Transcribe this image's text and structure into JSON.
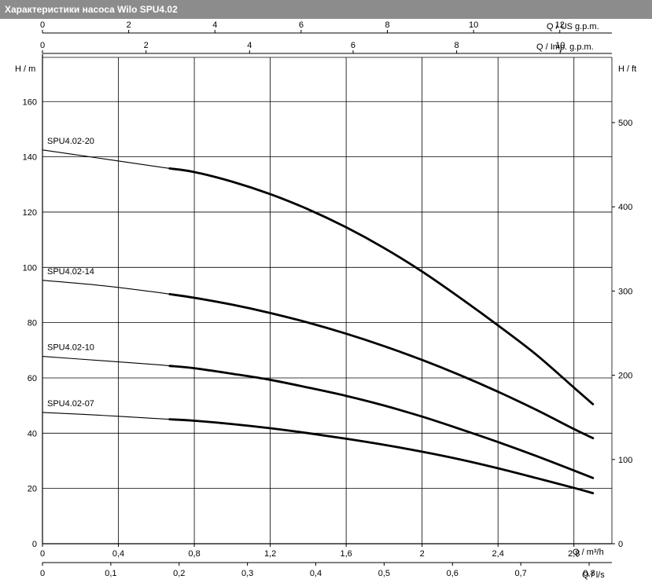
{
  "title": "Характеристики насоса Wilo SPU4.02",
  "chart_data": {
    "type": "line",
    "x_axis_primary": {
      "label_symbol": "Q",
      "unit": "m³/h",
      "range": [
        0,
        3.0
      ],
      "ticks": [
        0,
        0.4,
        0.8,
        1.2,
        1.6,
        2,
        2.4,
        2.8
      ],
      "tick_labels": [
        "0",
        "0,4",
        "0,8",
        "1,2",
        "1,6",
        "2",
        "2,4",
        "2,8"
      ]
    },
    "x_axis_ls": {
      "label_symbol": "Q",
      "unit": "l/s",
      "ticks": [
        0,
        0.1,
        0.2,
        0.3,
        0.4,
        0.5,
        0.6,
        0.7,
        0.8
      ],
      "tick_labels": [
        "0",
        "0,1",
        "0,2",
        "0,3",
        "0,4",
        "0,5",
        "0,6",
        "0,7",
        "0,8"
      ]
    },
    "x_axis_us_gpm": {
      "label_symbol": "Q",
      "unit": "US g.p.m.",
      "ticks": [
        0,
        2,
        4,
        6,
        8,
        10,
        12
      ],
      "tick_labels": [
        "0",
        "2",
        "4",
        "6",
        "8",
        "10",
        "12"
      ]
    },
    "x_axis_imp_gpm": {
      "label_symbol": "Q",
      "unit": "Imp. g.p.m.",
      "ticks": [
        0,
        2,
        4,
        6,
        8,
        10
      ],
      "tick_labels": [
        "0",
        "2",
        "4",
        "6",
        "8",
        "10"
      ]
    },
    "y_axis_left": {
      "label_symbol": "H",
      "unit": "m",
      "range": [
        0,
        176
      ],
      "ticks": [
        0,
        20,
        40,
        60,
        80,
        100,
        120,
        140,
        160
      ],
      "tick_labels": [
        "0",
        "20",
        "40",
        "60",
        "80",
        "100",
        "120",
        "140",
        "160"
      ]
    },
    "y_axis_right": {
      "label_symbol": "H",
      "unit": "ft",
      "ticks": [
        0,
        100,
        200,
        300,
        400,
        500
      ],
      "tick_labels": [
        "0",
        "100",
        "200",
        "300",
        "400",
        "500"
      ]
    },
    "grid": true,
    "series": [
      {
        "name": "SPU4.02-20",
        "x": [
          0,
          0.3,
          0.6,
          0.8,
          1.0,
          1.2,
          1.4,
          1.6,
          1.8,
          2.0,
          2.2,
          2.4,
          2.6,
          2.8,
          2.9
        ],
        "y": [
          142.5,
          139.5,
          136.5,
          134.5,
          131.0,
          126.5,
          121.0,
          114.5,
          107.0,
          98.5,
          89.0,
          79.0,
          68.5,
          56.5,
          50.5
        ],
        "bold_from": 0.67
      },
      {
        "name": "SPU4.02-14",
        "x": [
          0,
          0.3,
          0.6,
          0.8,
          1.0,
          1.2,
          1.4,
          1.6,
          1.8,
          2.0,
          2.2,
          2.4,
          2.6,
          2.8,
          2.9
        ],
        "y": [
          95.3,
          93.5,
          91.0,
          89.0,
          86.5,
          83.5,
          80.0,
          76.0,
          71.5,
          66.5,
          61.0,
          55.0,
          48.5,
          41.5,
          38.2
        ],
        "bold_from": 0.67
      },
      {
        "name": "SPU4.02-10",
        "x": [
          0,
          0.3,
          0.6,
          0.8,
          1.0,
          1.2,
          1.4,
          1.6,
          1.8,
          2.0,
          2.2,
          2.4,
          2.6,
          2.8,
          2.9
        ],
        "y": [
          67.8,
          66.3,
          64.8,
          63.5,
          61.5,
          59.3,
          56.5,
          53.5,
          50.0,
          46.0,
          41.5,
          36.8,
          31.8,
          26.5,
          23.8
        ],
        "bold_from": 0.67
      },
      {
        "name": "SPU4.02-07",
        "x": [
          0,
          0.3,
          0.6,
          0.8,
          1.0,
          1.2,
          1.4,
          1.6,
          1.8,
          2.0,
          2.2,
          2.4,
          2.6,
          2.8,
          2.9
        ],
        "y": [
          47.5,
          46.5,
          45.3,
          44.5,
          43.3,
          41.8,
          40.0,
          38.0,
          35.8,
          33.3,
          30.5,
          27.3,
          23.8,
          20.2,
          18.3
        ],
        "bold_from": 0.67
      }
    ]
  }
}
